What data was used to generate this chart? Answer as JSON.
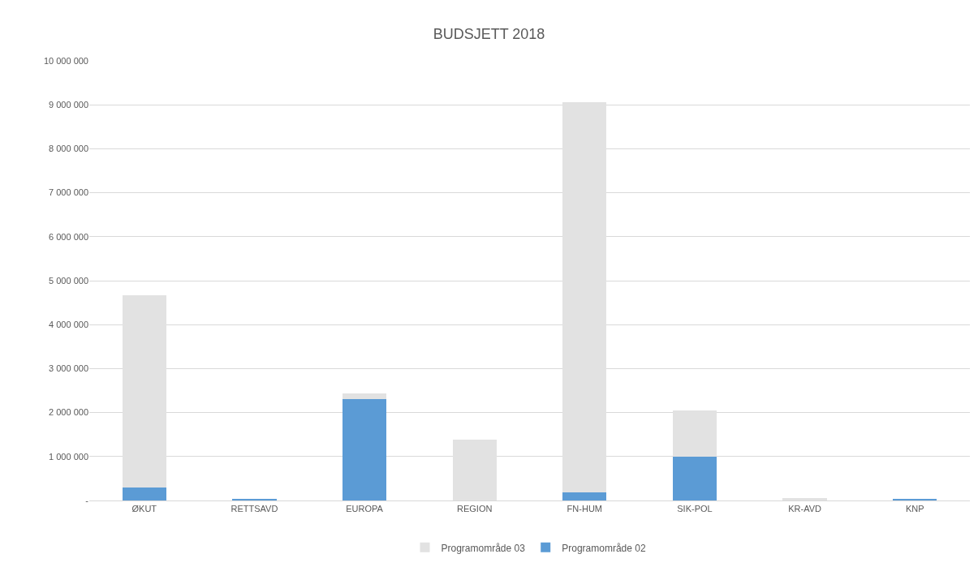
{
  "chart_data": {
    "type": "bar",
    "title": "BUDSJETT 2018",
    "stacked": true,
    "categories": [
      "ØKUT",
      "RETTSAVD",
      "EUROPA",
      "REGION",
      "FN-HUM",
      "SIK-POL",
      "KR-AVD",
      "KNP"
    ],
    "series": [
      {
        "name": "Programområde 02",
        "color": "#5b9bd5",
        "values": [
          290000,
          30000,
          2310000,
          0,
          190000,
          990000,
          0,
          40000
        ]
      },
      {
        "name": "Programområde 03",
        "color": "#e2e2e2",
        "values": [
          4380000,
          0,
          130000,
          1380000,
          8870000,
          1050000,
          60000,
          0
        ]
      }
    ],
    "ylim": [
      0,
      10000000
    ],
    "yticks": [
      {
        "value": 0,
        "label": "-"
      },
      {
        "value": 1000000,
        "label": "1 000 000"
      },
      {
        "value": 2000000,
        "label": "2 000 000"
      },
      {
        "value": 3000000,
        "label": "3 000 000"
      },
      {
        "value": 4000000,
        "label": "4 000 000"
      },
      {
        "value": 5000000,
        "label": "5 000 000"
      },
      {
        "value": 6000000,
        "label": "6 000 000"
      },
      {
        "value": 7000000,
        "label": "7 000 000"
      },
      {
        "value": 8000000,
        "label": "8 000 000"
      },
      {
        "value": 9000000,
        "label": "9 000 000"
      },
      {
        "value": 10000000,
        "label": "10 000 000"
      }
    ],
    "grid": "y",
    "legend": "bottom"
  }
}
